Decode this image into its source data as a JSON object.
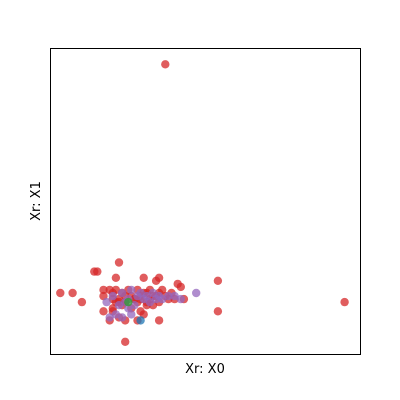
{
  "chart_data": {
    "type": "scatter",
    "title": "",
    "xlabel": "Xr: X0",
    "ylabel": "Xr: X1",
    "xlim": [
      0,
      100
    ],
    "ylim": [
      0,
      100
    ],
    "x_ticks_visible": false,
    "y_ticks_visible": false,
    "grid": false,
    "legend": false,
    "series": [
      {
        "color": "#d62728",
        "points": [
          [
            37,
            95
          ],
          [
            95,
            17
          ],
          [
            54,
            24
          ],
          [
            41,
            23
          ],
          [
            14,
            27
          ],
          [
            15,
            27
          ],
          [
            22,
            30
          ],
          [
            21,
            25
          ],
          [
            30,
            25
          ],
          [
            35,
            25
          ],
          [
            34,
            24
          ],
          [
            42,
            22
          ],
          [
            21,
            21
          ],
          [
            25,
            21
          ],
          [
            19,
            21
          ],
          [
            28,
            21
          ],
          [
            20,
            20
          ],
          [
            23,
            20
          ],
          [
            31,
            20
          ],
          [
            26,
            19
          ],
          [
            30,
            20
          ],
          [
            32,
            21
          ],
          [
            17,
            21
          ],
          [
            36,
            21
          ],
          [
            39,
            20
          ],
          [
            35,
            20
          ],
          [
            33,
            19
          ],
          [
            24,
            19
          ],
          [
            29,
            19
          ],
          [
            34,
            19
          ],
          [
            37,
            19
          ],
          [
            29,
            18
          ],
          [
            32,
            18
          ],
          [
            27,
            18
          ],
          [
            22,
            18
          ],
          [
            38,
            18
          ],
          [
            40,
            18
          ],
          [
            24,
            17
          ],
          [
            28,
            17
          ],
          [
            31,
            17
          ],
          [
            35,
            17
          ],
          [
            17,
            19
          ],
          [
            20,
            18
          ],
          [
            22,
            17
          ],
          [
            10,
            17
          ],
          [
            43,
            18
          ],
          [
            7,
            20
          ],
          [
            3,
            20
          ],
          [
            54,
            14
          ],
          [
            17,
            14
          ],
          [
            20,
            15
          ],
          [
            23,
            16
          ],
          [
            26,
            15
          ],
          [
            29,
            14
          ],
          [
            35,
            11
          ],
          [
            24,
            11
          ],
          [
            28,
            11
          ],
          [
            19,
            11
          ],
          [
            22,
            12
          ],
          [
            20,
            14
          ],
          [
            30,
            13
          ],
          [
            24,
            4
          ],
          [
            27,
            18
          ],
          [
            31,
            16
          ],
          [
            21,
            17
          ],
          [
            33,
            16
          ]
        ]
      },
      {
        "color": "#9467bd",
        "points": [
          [
            47,
            20
          ],
          [
            26,
            21
          ],
          [
            23,
            20
          ],
          [
            29,
            20
          ],
          [
            33,
            20
          ],
          [
            20,
            19
          ],
          [
            25,
            18
          ],
          [
            28,
            19
          ],
          [
            31,
            19
          ],
          [
            35,
            19
          ],
          [
            38,
            19
          ],
          [
            42,
            18
          ],
          [
            18,
            17
          ],
          [
            22,
            16
          ],
          [
            25,
            15
          ],
          [
            21,
            13
          ],
          [
            23,
            12
          ],
          [
            19,
            12
          ],
          [
            26,
            13
          ],
          [
            30,
            18
          ],
          [
            34,
            18
          ],
          [
            27,
            16
          ],
          [
            24,
            17
          ],
          [
            32,
            17
          ],
          [
            36,
            18
          ],
          [
            40,
            19
          ]
        ]
      },
      {
        "color": "#2ca02c",
        "points": [
          [
            25,
            17
          ]
        ]
      },
      {
        "color": "#1f77b4",
        "points": [
          [
            29,
            11
          ]
        ]
      }
    ]
  }
}
